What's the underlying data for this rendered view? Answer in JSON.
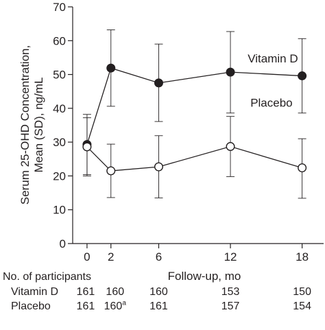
{
  "chart_data": {
    "type": "line",
    "ylabel_line1": "Serum 25-OHD Concentration,",
    "ylabel_line2": "Mean (SD), ng/mL",
    "xlabel": "Follow-up, mo",
    "x": [
      0,
      2,
      6,
      12,
      18
    ],
    "x_ticks": [
      0,
      2,
      6,
      12,
      18
    ],
    "xlim": [
      -1.2,
      19.8
    ],
    "ylim": [
      0,
      70
    ],
    "y_ticks": [
      0,
      10,
      20,
      30,
      40,
      50,
      60,
      70
    ],
    "grid": false,
    "series": [
      {
        "name": "Vitamin D",
        "marker": "filled-circle",
        "values": [
          29.3,
          51.9,
          47.5,
          50.7,
          49.6
        ],
        "sd_lower": [
          20.4,
          40.6,
          36.1,
          38.6,
          38.6
        ],
        "sd_upper": [
          38.2,
          63.2,
          59.0,
          62.7,
          60.6
        ]
      },
      {
        "name": "Placebo",
        "marker": "open-circle",
        "values": [
          28.6,
          21.5,
          22.7,
          28.7,
          22.4
        ],
        "sd_lower": [
          20.0,
          13.6,
          13.5,
          19.8,
          13.4
        ],
        "sd_upper": [
          37.2,
          29.4,
          31.9,
          37.6,
          31.0
        ]
      }
    ],
    "series_label_positions": [
      "upper-right",
      "right"
    ]
  },
  "participants": {
    "title": "No. of participants",
    "rows": [
      {
        "label": "Vitamin D",
        "counts": [
          "161",
          "160",
          "160",
          "153",
          "150"
        ],
        "sups": [
          "",
          "",
          "",
          "",
          ""
        ]
      },
      {
        "label": "Placebo",
        "counts": [
          "161",
          "160",
          "161",
          "157",
          "154"
        ],
        "sups": [
          "",
          "a",
          "",
          "",
          ""
        ]
      }
    ]
  }
}
